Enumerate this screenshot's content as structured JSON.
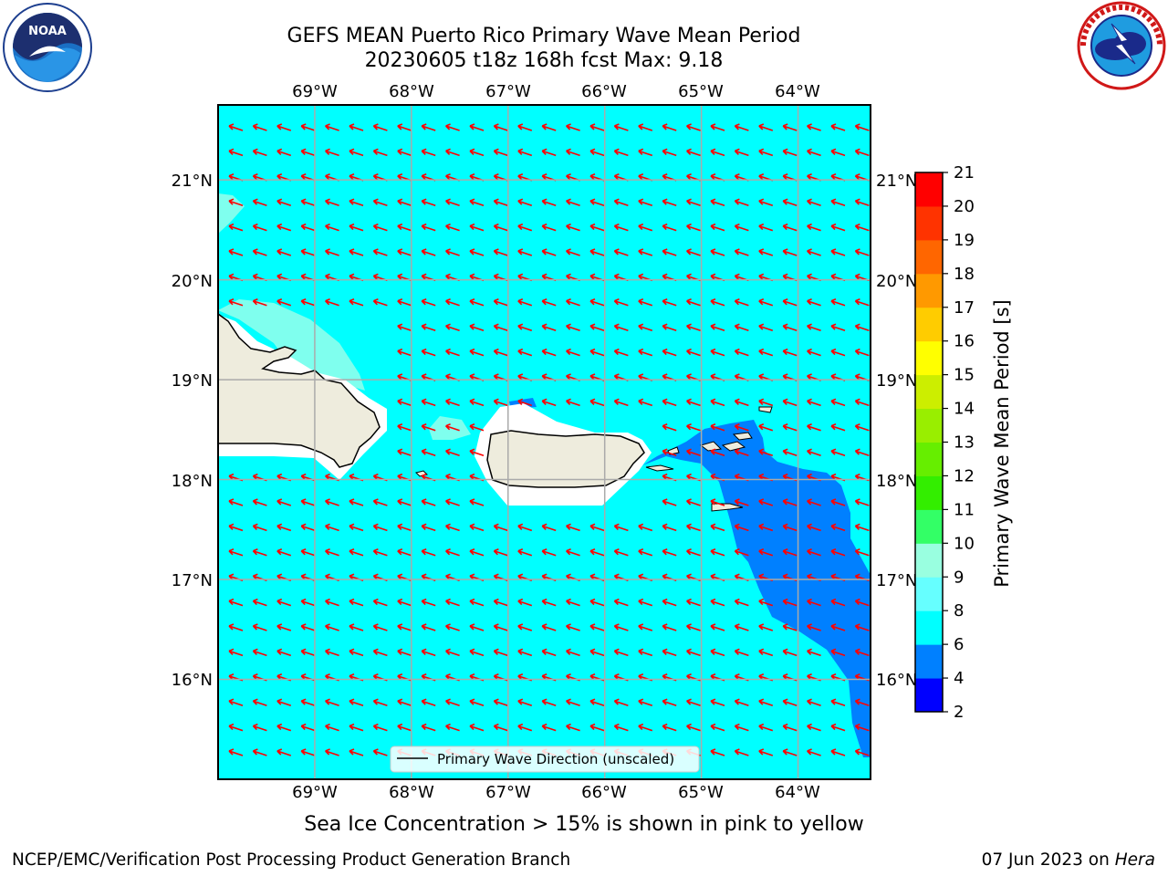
{
  "title": {
    "line1": "GEFS MEAN Puerto Rico Primary Wave Mean Period",
    "line2": "20230605 t18z 168h fcst   Max: 9.18"
  },
  "logos": {
    "left": {
      "text": "NOAA",
      "ring_text": "NATIONAL OCEANIC AND ATMOSPHERIC ADMINISTRATION · U.S. DEPARTMENT OF COMMERCE"
    },
    "right": {
      "ring_text": "NATIONAL WEATHER SERVICE"
    }
  },
  "map": {
    "lon_labels": [
      "69°W",
      "68°W",
      "67°W",
      "66°W",
      "65°W",
      "64°W"
    ],
    "lat_labels": [
      "21°N",
      "20°N",
      "19°N",
      "18°N",
      "17°N",
      "16°N"
    ],
    "extent": {
      "lon_min": -70.0,
      "lon_max": -63.25,
      "lat_min": 15.0,
      "lat_max": 21.75
    },
    "ocean_color": "#00ffff",
    "land_color": "#eeecdd",
    "arrow_color": "#ff0000",
    "legend_label": "Primary Wave Direction (unscaled)"
  },
  "colorbar": {
    "label": "Primary Wave Mean Period [s]",
    "ticks": [
      "2",
      "4",
      "6",
      "8",
      "9",
      "10",
      "11",
      "12",
      "13",
      "14",
      "15",
      "16",
      "17",
      "18",
      "19",
      "20",
      "21"
    ],
    "colors": [
      "#0000ff",
      "#0080ff",
      "#00ffff",
      "#66ffff",
      "#99ffe0",
      "#33ff66",
      "#33ee00",
      "#66ee00",
      "#99ee00",
      "#ccee00",
      "#ffff00",
      "#ffcc00",
      "#ff9900",
      "#ff6600",
      "#ff3300",
      "#ff0000"
    ]
  },
  "chart_data": {
    "type": "heatmap",
    "title": "GEFS MEAN Puerto Rico Primary Wave Mean Period",
    "subtitle": "20230605 t18z 168h fcst   Max: 9.18",
    "x_axis": {
      "ticks": [
        "69°W",
        "68°W",
        "67°W",
        "66°W",
        "65°W",
        "64°W"
      ],
      "range": [
        -70.0,
        -63.25
      ]
    },
    "y_axis": {
      "ticks": [
        "21°N",
        "20°N",
        "19°N",
        "18°N",
        "17°N",
        "16°N"
      ],
      "range": [
        15.0,
        21.75
      ]
    },
    "colorbar_levels": [
      2,
      4,
      6,
      8,
      9,
      10,
      11,
      12,
      13,
      14,
      15,
      16,
      17,
      18,
      19,
      20,
      21
    ],
    "colorbar_label": "Primary Wave Mean Period [s]",
    "max_value": 9.18,
    "dominant_period_band": [
      6,
      8
    ],
    "lower_period_region_band": [
      4,
      6
    ],
    "higher_period_patches_band": [
      8,
      9
    ],
    "wave_direction": "toward west-northwest",
    "grid": true
  },
  "footer": {
    "note": "Sea Ice Concentration > 15% is shown in pink to yellow",
    "credit_left": "NCEP/EMC/Verification Post Processing Product Generation Branch",
    "credit_date": "07 Jun 2023 on ",
    "credit_machine": "Hera"
  }
}
